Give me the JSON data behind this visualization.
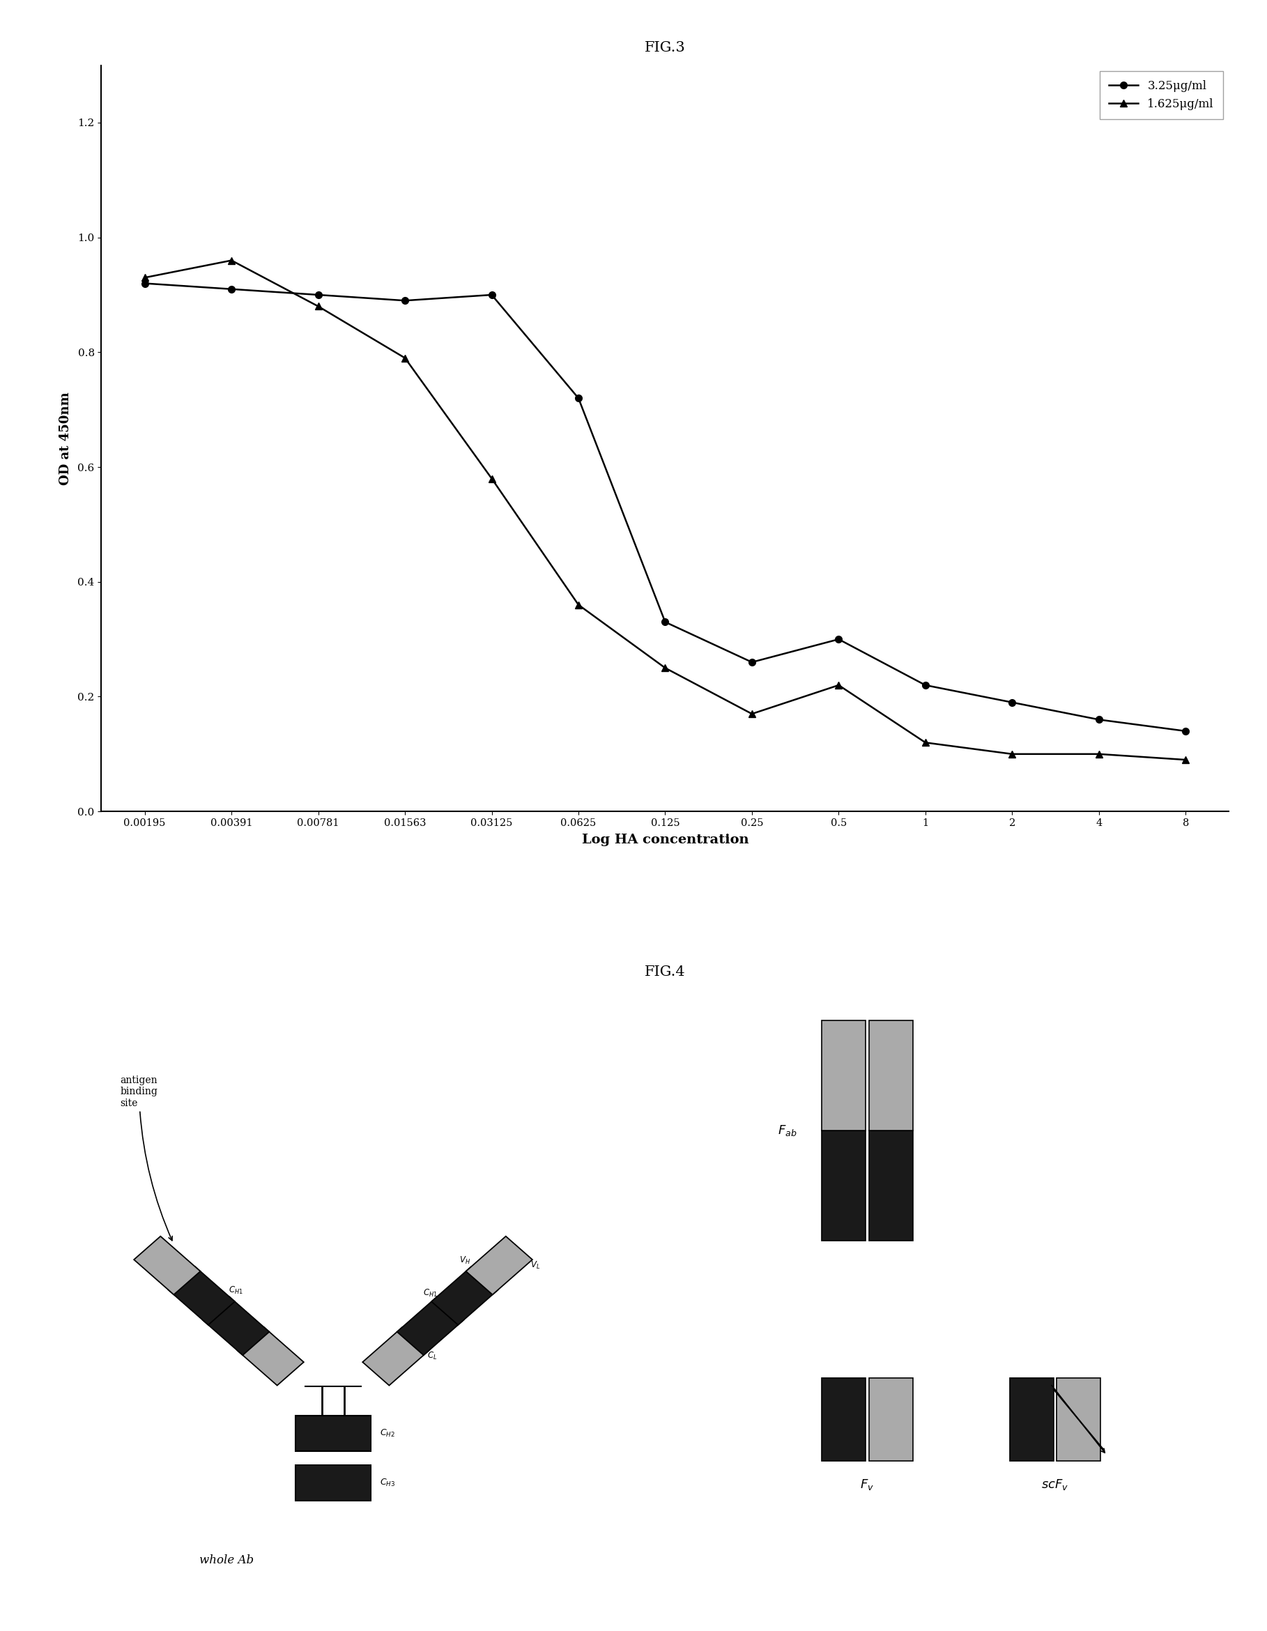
{
  "fig3_title": "FIG.3",
  "fig4_title": "FIG.4",
  "x_labels": [
    "0.00195",
    "0.00391",
    "0.00781",
    "0.01563",
    "0.03125",
    "0.0625",
    "0.125",
    "0.25",
    "0.5",
    "1",
    "2",
    "4",
    "8"
  ],
  "xlabel": "Log HA concentration",
  "ylabel": "OD at 450nm",
  "series1_label": "3.25μg/ml",
  "series2_label": "1.625μg/ml",
  "series1_y": [
    0.92,
    0.91,
    0.9,
    0.89,
    0.9,
    0.72,
    0.33,
    0.26,
    0.3,
    0.22,
    0.19,
    0.16,
    0.14
  ],
  "series2_y": [
    0.93,
    0.96,
    0.88,
    0.79,
    0.58,
    0.36,
    0.25,
    0.17,
    0.22,
    0.12,
    0.1,
    0.1,
    0.09
  ],
  "ylim": [
    0.0,
    1.3
  ],
  "yticks": [
    0.0,
    0.2,
    0.4,
    0.6,
    0.8,
    1.0,
    1.2
  ],
  "dark_color": "#1a1a1a",
  "light_gray": "#aaaaaa",
  "med_gray": "#888888",
  "very_light": "#cccccc"
}
